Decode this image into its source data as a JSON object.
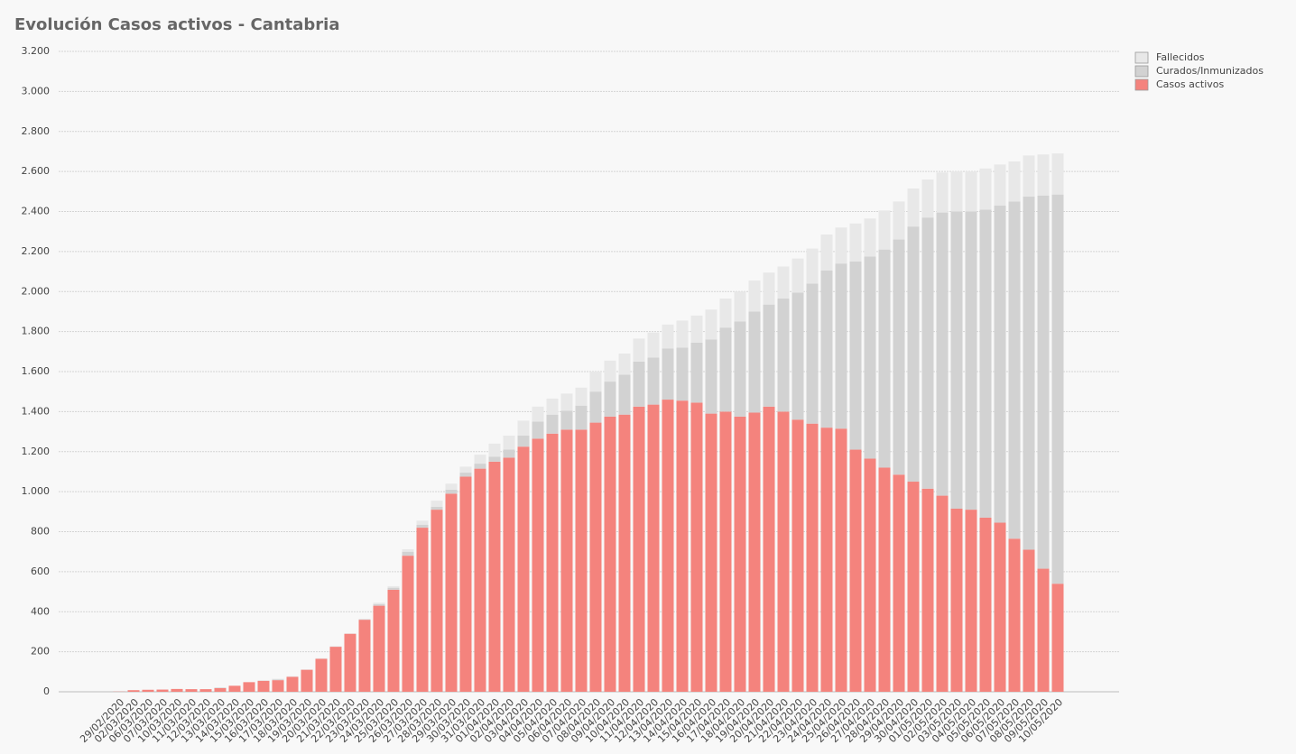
{
  "chart_data": {
    "type": "stacked_bar",
    "title": "Evolución Casos activos - Cantabria",
    "categories": [
      "29/02/2020",
      "02/03/2020",
      "06/03/2020",
      "07/03/2020",
      "10/03/2020",
      "11/03/2020",
      "12/03/2020",
      "13/03/2020",
      "14/03/2020",
      "15/03/2020",
      "16/03/2020",
      "17/03/2020",
      "18/03/2020",
      "19/03/2020",
      "20/03/2020",
      "21/03/2020",
      "22/03/2020",
      "23/03/2020",
      "24/03/2020",
      "25/03/2020",
      "26/03/2020",
      "27/03/2020",
      "28/03/2020",
      "29/03/2020",
      "30/03/2020",
      "31/03/2020",
      "01/04/2020",
      "02/04/2020",
      "03/04/2020",
      "04/04/2020",
      "05/04/2020",
      "06/04/2020",
      "07/04/2020",
      "08/04/2020",
      "09/04/2020",
      "10/04/2020",
      "11/04/2020",
      "12/04/2020",
      "13/04/2020",
      "14/04/2020",
      "15/04/2020",
      "16/04/2020",
      "17/04/2020",
      "18/04/2020",
      "19/04/2020",
      "20/04/2020",
      "21/04/2020",
      "22/04/2020",
      "23/04/2020",
      "24/04/2020",
      "25/04/2020",
      "26/04/2020",
      "27/04/2020",
      "28/04/2020",
      "29/04/2020",
      "30/04/2020",
      "01/05/2020",
      "02/05/2020",
      "03/05/2020",
      "04/05/2020",
      "05/05/2020",
      "06/05/2020",
      "07/05/2020",
      "08/05/2020",
      "09/05/2020",
      "10/05/2020"
    ],
    "series": [
      {
        "name": "Casos activos",
        "color": "#f4837d",
        "values": [
          1,
          8,
          10,
          11,
          14,
          13,
          13,
          18,
          30,
          48,
          55,
          58,
          75,
          110,
          165,
          225,
          290,
          360,
          430,
          510,
          680,
          820,
          910,
          990,
          1075,
          1115,
          1150,
          1170,
          1225,
          1265,
          1290,
          1310,
          1310,
          1345,
          1375,
          1385,
          1425,
          1435,
          1460,
          1455,
          1445,
          1390,
          1400,
          1375,
          1395,
          1425,
          1400,
          1360,
          1340,
          1320,
          1315,
          1210,
          1165,
          1120,
          1085,
          1050,
          1015,
          980,
          915,
          910,
          870,
          845,
          765,
          710,
          615,
          540
        ]
      },
      {
        "name": "Curados/Inmunizados",
        "color": "#d2d2d2",
        "values": [
          0,
          0,
          0,
          0,
          0,
          0,
          0,
          2,
          0,
          0,
          0,
          4,
          0,
          0,
          0,
          0,
          0,
          2,
          8,
          10,
          20,
          15,
          15,
          20,
          20,
          25,
          25,
          40,
          55,
          85,
          95,
          95,
          120,
          155,
          175,
          200,
          225,
          235,
          255,
          265,
          300,
          370,
          420,
          475,
          505,
          510,
          565,
          635,
          700,
          785,
          825,
          940,
          1010,
          1090,
          1175,
          1275,
          1355,
          1415,
          1485,
          1490,
          1540,
          1585,
          1685,
          1765,
          1865,
          1945
        ]
      },
      {
        "name": "Fallecidos",
        "color": "#e8e8e8",
        "values": [
          0,
          0,
          0,
          0,
          0,
          0,
          0,
          2,
          0,
          0,
          3,
          3,
          3,
          2,
          3,
          3,
          2,
          3,
          7,
          8,
          12,
          20,
          30,
          30,
          30,
          45,
          65,
          70,
          75,
          75,
          80,
          85,
          90,
          100,
          105,
          105,
          115,
          125,
          120,
          135,
          135,
          150,
          145,
          150,
          155,
          160,
          160,
          170,
          175,
          180,
          180,
          190,
          190,
          195,
          190,
          190,
          190,
          200,
          200,
          200,
          205,
          205,
          200,
          205,
          205,
          205
        ]
      }
    ],
    "ylim": [
      0,
      3200
    ],
    "yticks": [
      0,
      200,
      400,
      600,
      800,
      {
        "value": 1000,
        "label": "1.000"
      },
      {
        "value": 1200,
        "label": "1.200"
      },
      {
        "value": 1400,
        "label": "1.400"
      },
      {
        "value": 1600,
        "label": "1.600"
      },
      {
        "value": 1800,
        "label": "1.800"
      },
      {
        "value": 2000,
        "label": "2.000"
      },
      {
        "value": 2200,
        "label": "2.200"
      },
      {
        "value": 2400,
        "label": "2.400"
      },
      {
        "value": 2600,
        "label": "2.600"
      },
      {
        "value": 2800,
        "label": "2.800"
      },
      {
        "value": 3000,
        "label": "3.000"
      },
      {
        "value": 3200,
        "label": "3.200"
      }
    ],
    "grid": true,
    "legend": "top-right"
  }
}
